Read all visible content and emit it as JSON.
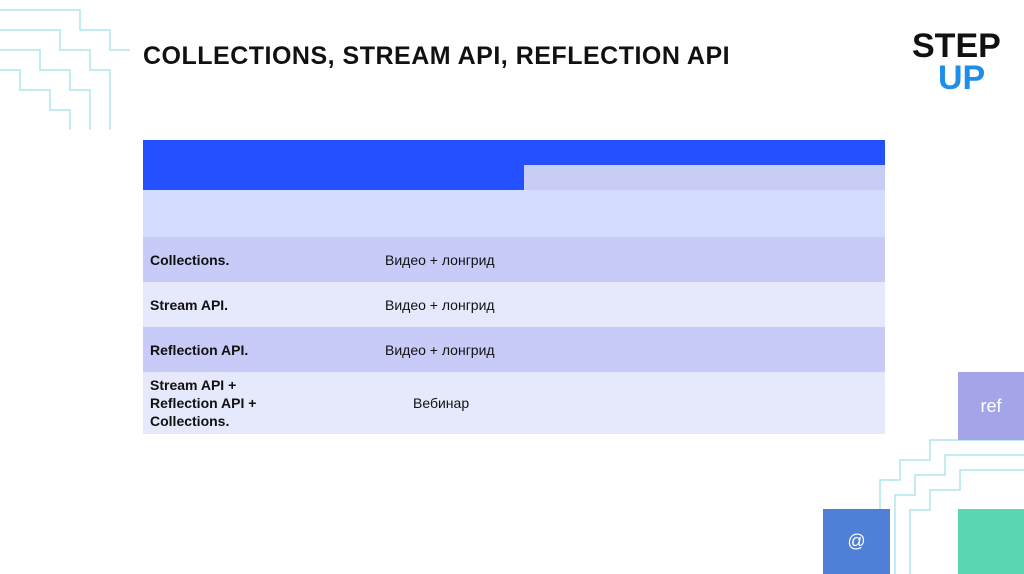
{
  "header": {
    "title": "COLLECTIONS, STREAM API, REFLECTION API",
    "logo": [
      "STEP",
      "UP"
    ]
  },
  "table": {
    "rows": [
      [
        [
          "Collections."
        ],
        "Видео + лонгрид"
      ],
      [
        [
          "Stream API."
        ],
        "Видео + лонгрид"
      ],
      [
        [
          "Reflection API."
        ],
        "Видео + лонгрид"
      ],
      [
        [
          "Stream API +",
          "Reflection API +",
          "Collections."
        ],
        "Вебинар"
      ]
    ]
  },
  "tiles": [
    "ref",
    "@"
  ]
}
